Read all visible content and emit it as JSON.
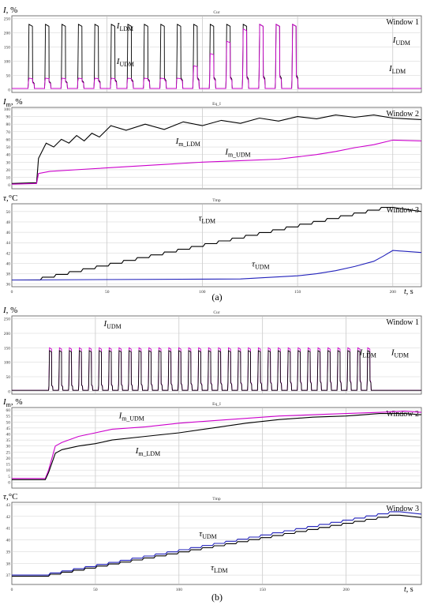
{
  "figure": {
    "caption_a": "(a)",
    "caption_b": "(b)",
    "x_label": "t",
    "x_unit": ", s"
  },
  "chart_data": [
    {
      "id": "a1",
      "type": "line",
      "panel": "a",
      "window": "Window 1",
      "scope_title": "Cur",
      "ylabel_sym": "I",
      "ylabel_unit": ", %",
      "xlim": [
        0,
        215
      ],
      "ylim": [
        -10,
        260
      ],
      "yticks": [
        0,
        50,
        100,
        150,
        200,
        250
      ],
      "xticks": [
        0,
        50,
        100,
        150,
        200
      ],
      "show_xticks": false,
      "series": [
        {
          "name": "I_LDM",
          "color": "#000000",
          "mode": "pulses",
          "p": {
            "start": 8.5,
            "period": 8.65,
            "count": 17,
            "width": 2.6,
            "peak": 230,
            "base": 4,
            "mid": 40
          }
        },
        {
          "name": "I_UDM",
          "color": "#cc00cc",
          "mode": "pulses",
          "p": {
            "start": 8.5,
            "period": 8.65,
            "count": 17,
            "width": 2.6,
            "peak": 40,
            "base": 4,
            "mid": 35,
            "grow_to": 230,
            "grow_from": 9
          }
        }
      ],
      "annotations": [
        {
          "sym": "I",
          "sub": "LDM",
          "x": 55,
          "y": 215
        },
        {
          "sym": "I",
          "sub": "UDM",
          "x": 55,
          "y": 90
        },
        {
          "sym": "I",
          "sub": "UDM",
          "x": 200,
          "y": 165
        },
        {
          "sym": "I",
          "sub": "LDM",
          "x": 198,
          "y": 65
        }
      ]
    },
    {
      "id": "a2",
      "type": "line",
      "panel": "a",
      "window": "Window 2",
      "scope_title": "Eq_I",
      "ylabel_sym": "I",
      "ylabel_sub": "m",
      "ylabel_unit": ", %",
      "xlim": [
        0,
        215
      ],
      "ylim": [
        -5,
        102
      ],
      "yticks": [
        0,
        10,
        20,
        30,
        40,
        50,
        60,
        70,
        80,
        90,
        100
      ],
      "xticks": [
        0,
        50,
        100,
        150,
        200
      ],
      "show_xticks": false,
      "series": [
        {
          "name": "I_m_LDM",
          "color": "#000000",
          "mode": "points",
          "x": [
            0,
            13,
            14,
            18,
            22,
            26,
            30,
            34,
            38,
            42,
            46,
            52,
            60,
            70,
            80,
            90,
            100,
            110,
            120,
            130,
            140,
            150,
            160,
            170,
            180,
            190,
            200,
            215
          ],
          "y": [
            2,
            3,
            35,
            55,
            50,
            60,
            55,
            65,
            58,
            68,
            63,
            78,
            72,
            80,
            73,
            83,
            78,
            85,
            81,
            88,
            84,
            90,
            87,
            92,
            89,
            92,
            88,
            86
          ]
        },
        {
          "name": "I_m_UDM",
          "color": "#cc00cc",
          "mode": "points",
          "x": [
            0,
            13,
            14,
            20,
            40,
            60,
            80,
            100,
            120,
            140,
            150,
            160,
            170,
            180,
            190,
            200,
            215
          ],
          "y": [
            1,
            2,
            15,
            18,
            21,
            24,
            27,
            30,
            32,
            34,
            37,
            40,
            44,
            49,
            53,
            59,
            58
          ]
        }
      ],
      "annotations": [
        {
          "sym": "I",
          "sub": "m_LDM",
          "x": 86,
          "y": 54
        },
        {
          "sym": "I",
          "sub": "m_UDM",
          "x": 112,
          "y": 40
        }
      ]
    },
    {
      "id": "a3",
      "type": "line",
      "panel": "a",
      "window": "Window 3",
      "scope_title": "Tmp",
      "ylabel_sym": "τ",
      "ylabel_unit": ",°C",
      "xlim": [
        0,
        215
      ],
      "ylim": [
        35.5,
        51.5
      ],
      "yticks": [
        36,
        38,
        40,
        42,
        44,
        46,
        48,
        50
      ],
      "xticks": [
        0,
        50,
        100,
        150,
        200
      ],
      "show_xticks": true,
      "series": [
        {
          "name": "τ_LDM",
          "color": "#000000",
          "mode": "stairs",
          "p": {
            "x0": 15,
            "x1": 200,
            "y0": 36.8,
            "y1": 50.8,
            "steps": 26,
            "tail": 50.0
          }
        },
        {
          "name": "τ_UDM",
          "color": "#2222bb",
          "mode": "points",
          "x": [
            0,
            120,
            150,
            160,
            170,
            180,
            190,
            195,
            200,
            215
          ],
          "y": [
            36.8,
            37.0,
            37.6,
            38.0,
            38.6,
            39.4,
            40.4,
            41.4,
            42.5,
            42.1
          ]
        }
      ],
      "annotations": [
        {
          "sym": "τ",
          "sub": "LDM",
          "x": 98,
          "y": 48.2
        },
        {
          "sym": "τ",
          "sub": "UDM",
          "x": 126,
          "y": 39.4
        }
      ]
    },
    {
      "id": "b1",
      "type": "line",
      "panel": "b",
      "window": "Window 1",
      "scope_title": "Cur",
      "ylabel_sym": "I",
      "ylabel_unit": ", %",
      "xlim": [
        0,
        245
      ],
      "ylim": [
        -10,
        260
      ],
      "yticks": [
        0,
        50,
        100,
        150,
        200,
        250
      ],
      "xticks": [
        0,
        50,
        100,
        150,
        200
      ],
      "show_xticks": false,
      "series": [
        {
          "name": "I_UDM",
          "color": "#cc00cc",
          "mode": "pulses",
          "p": {
            "start": 22,
            "period": 5.95,
            "count": 33,
            "width": 1.8,
            "peak": 150,
            "base": 3,
            "mid": 30
          }
        },
        {
          "name": "I_LDM",
          "color": "#000000",
          "mode": "pulses",
          "p": {
            "start": 22,
            "period": 5.95,
            "count": 33,
            "width": 1.8,
            "peak": 140,
            "base": 3,
            "mid": 28
          }
        }
      ],
      "annotations": [
        {
          "sym": "I",
          "sub": "UDM",
          "x": 55,
          "y": 225
        },
        {
          "sym": "I",
          "sub": "LDM",
          "x": 208,
          "y": 125
        },
        {
          "sym": "I",
          "sub": "UDM",
          "x": 227,
          "y": 125
        }
      ]
    },
    {
      "id": "b2",
      "type": "line",
      "panel": "b",
      "window": "Window 2",
      "scope_title": "Eq_I",
      "ylabel_sym": "I",
      "ylabel_sub": "m",
      "ylabel_unit": ", %",
      "xlim": [
        0,
        245
      ],
      "ylim": [
        -5,
        62
      ],
      "yticks": [
        0,
        5,
        10,
        15,
        20,
        25,
        30,
        35,
        40,
        45,
        50,
        55,
        60
      ],
      "xticks": [
        0,
        50,
        100,
        150,
        200
      ],
      "show_xticks": false,
      "series": [
        {
          "name": "I_m_UDM",
          "color": "#cc00cc",
          "mode": "points",
          "x": [
            0,
            20,
            22,
            26,
            30,
            40,
            50,
            60,
            80,
            100,
            120,
            140,
            160,
            180,
            200,
            220,
            235,
            245
          ],
          "y": [
            3,
            3,
            10,
            30,
            33,
            38,
            41,
            44,
            46,
            49,
            51,
            53,
            55,
            56,
            57,
            58,
            59,
            58
          ]
        },
        {
          "name": "I_m_LDM",
          "color": "#000000",
          "mode": "points",
          "x": [
            0,
            20,
            22,
            26,
            30,
            40,
            50,
            60,
            80,
            100,
            120,
            140,
            160,
            180,
            200,
            220,
            235,
            245
          ],
          "y": [
            2,
            2,
            8,
            24,
            27,
            30,
            32,
            35,
            38,
            41,
            45,
            49,
            52,
            54,
            55,
            57,
            57,
            56
          ]
        }
      ],
      "annotations": [
        {
          "sym": "I",
          "sub": "m_UDM",
          "x": 64,
          "y": 53
        },
        {
          "sym": "I",
          "sub": "m_LDM",
          "x": 74,
          "y": 24
        }
      ]
    },
    {
      "id": "b3",
      "type": "line",
      "panel": "b",
      "window": "Window 3",
      "scope_title": "Tmp",
      "ylabel_sym": "τ",
      "ylabel_unit": ",°C",
      "xlim": [
        0,
        245
      ],
      "ylim": [
        36.2,
        43.2
      ],
      "yticks": [
        37,
        38,
        39,
        40,
        41,
        42,
        43
      ],
      "xticks": [
        0,
        50,
        100,
        150,
        200
      ],
      "show_xticks": true,
      "series": [
        {
          "name": "τ_UDM",
          "color": "#2222bb",
          "mode": "stairs",
          "p": {
            "x0": 22,
            "x1": 232,
            "y0": 37.0,
            "y1": 42.4,
            "steps": 30,
            "tail": 42.2
          }
        },
        {
          "name": "τ_LDM",
          "color": "#000000",
          "mode": "stairs",
          "p": {
            "x0": 22,
            "x1": 232,
            "y0": 36.9,
            "y1": 42.1,
            "steps": 30,
            "tail": 41.9
          }
        }
      ],
      "annotations": [
        {
          "sym": "τ",
          "sub": "UDM",
          "x": 112,
          "y": 40.3
        },
        {
          "sym": "τ",
          "sub": "LDM",
          "x": 119,
          "y": 37.4
        }
      ]
    }
  ]
}
